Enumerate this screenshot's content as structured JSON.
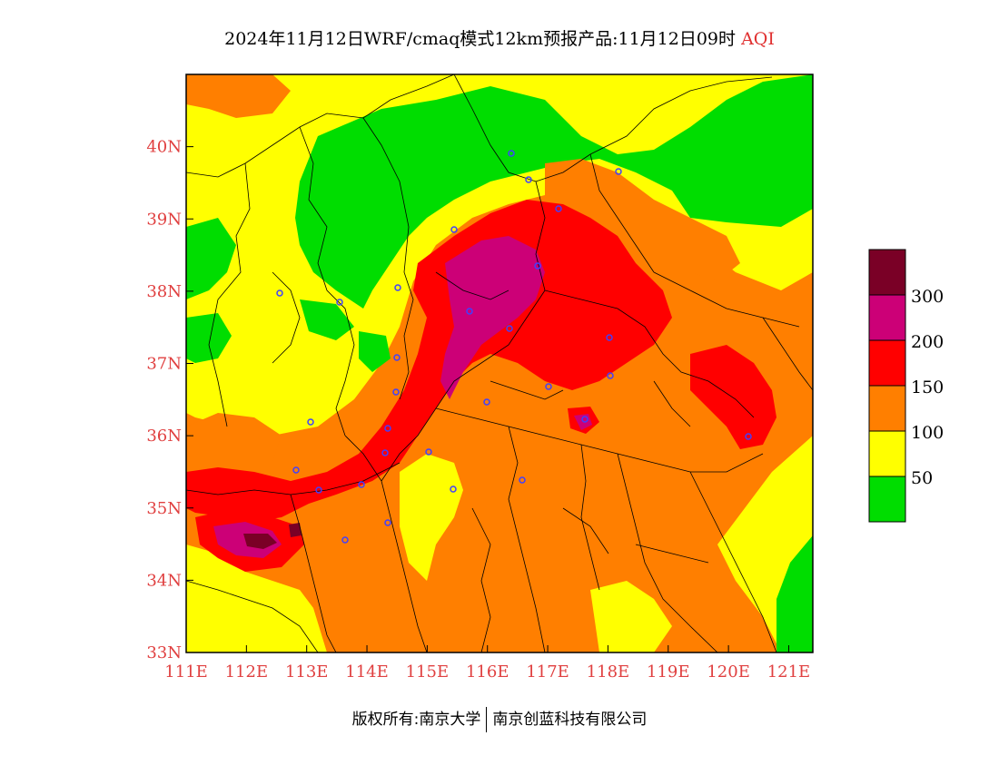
{
  "title": {
    "main": "2024年11月12日WRF/cmaq模式12km预报产品:11月12日09时",
    "variable": "AQI"
  },
  "footer": {
    "left": "版权所有:南京大学",
    "right": "南京创蓝科技有限公司"
  },
  "map": {
    "lon_range": [
      111,
      121.4
    ],
    "lat_range": [
      33,
      41
    ],
    "lon_ticks": [
      "111E",
      "112E",
      "113E",
      "114E",
      "115E",
      "116E",
      "117E",
      "118E",
      "119E",
      "120E",
      "121E"
    ],
    "lat_ticks": [
      "33N",
      "34N",
      "35N",
      "36N",
      "37N",
      "38N",
      "39N",
      "40N"
    ],
    "colors": {
      "good": "#00dd00",
      "moderate": "#ffff00",
      "unhealthy_sensitive": "#ff7f00",
      "unhealthy": "#ff0000",
      "very_unhealthy": "#cc0077",
      "hazardous": "#7a0026"
    }
  },
  "legend": {
    "labels": [
      "50",
      "100",
      "150",
      "200",
      "300"
    ]
  }
}
